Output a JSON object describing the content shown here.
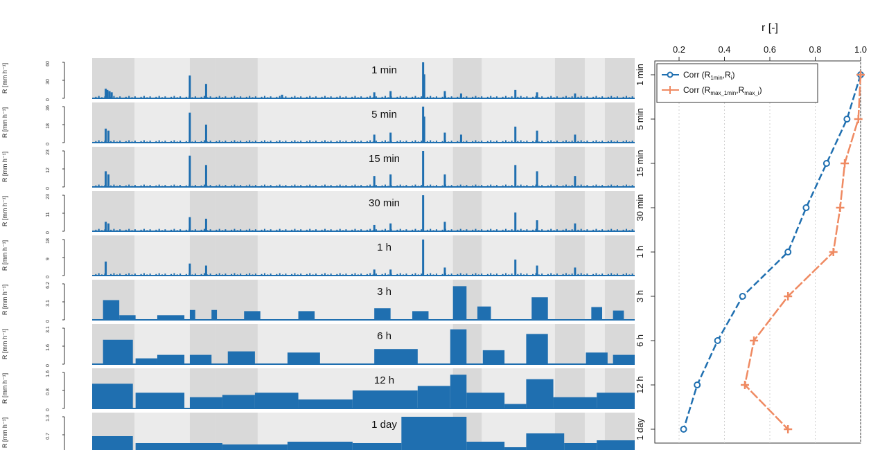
{
  "chart_data": [
    {
      "type": "area",
      "description_role": "stacked rainfall time-series panels",
      "ylabel": "R [mm h⁻¹]",
      "shading": {
        "colors": [
          "#d9d9d9",
          "#ebebeb"
        ],
        "bands_fraction": [
          [
            0.0,
            0.078
          ],
          [
            0.18,
            0.227
          ],
          [
            0.227,
            0.24
          ],
          [
            0.24,
            0.305
          ],
          [
            0.665,
            0.718
          ],
          [
            0.853,
            0.908
          ],
          [
            0.945,
            1.0
          ]
        ]
      },
      "series_color": "#1f6fb0",
      "panels": [
        {
          "title": "1 min",
          "yticks": [
            "0",
            "30",
            "60"
          ],
          "ymax": 60,
          "bars": [
            {
              "x": 0.025,
              "v": 16
            },
            {
              "x": 0.028,
              "v": 14
            },
            {
              "x": 0.032,
              "v": 12
            },
            {
              "x": 0.036,
              "v": 10
            },
            {
              "x": 0.18,
              "v": 38
            },
            {
              "x": 0.21,
              "v": 24
            },
            {
              "x": 0.52,
              "v": 10
            },
            {
              "x": 0.55,
              "v": 12
            },
            {
              "x": 0.61,
              "v": 60
            },
            {
              "x": 0.612,
              "v": 40
            },
            {
              "x": 0.65,
              "v": 12
            },
            {
              "x": 0.68,
              "v": 8
            },
            {
              "x": 0.78,
              "v": 14
            },
            {
              "x": 0.82,
              "v": 10
            },
            {
              "x": 0.89,
              "v": 8
            },
            {
              "x": 0.35,
              "v": 6
            }
          ]
        },
        {
          "title": "5 min",
          "yticks": [
            "0",
            "18",
            "36"
          ],
          "ymax": 36,
          "bars": [
            {
              "x": 0.025,
              "v": 14
            },
            {
              "x": 0.03,
              "v": 12
            },
            {
              "x": 0.18,
              "v": 30
            },
            {
              "x": 0.21,
              "v": 18
            },
            {
              "x": 0.52,
              "v": 8
            },
            {
              "x": 0.55,
              "v": 10
            },
            {
              "x": 0.61,
              "v": 36
            },
            {
              "x": 0.612,
              "v": 26
            },
            {
              "x": 0.65,
              "v": 10
            },
            {
              "x": 0.68,
              "v": 8
            },
            {
              "x": 0.78,
              "v": 16
            },
            {
              "x": 0.82,
              "v": 12
            },
            {
              "x": 0.89,
              "v": 8
            }
          ]
        },
        {
          "title": "15 min",
          "yticks": [
            "0",
            "12",
            "23"
          ],
          "ymax": 23,
          "bars": [
            {
              "x": 0.025,
              "v": 10
            },
            {
              "x": 0.03,
              "v": 8
            },
            {
              "x": 0.18,
              "v": 20
            },
            {
              "x": 0.21,
              "v": 14
            },
            {
              "x": 0.52,
              "v": 7
            },
            {
              "x": 0.55,
              "v": 8
            },
            {
              "x": 0.61,
              "v": 23
            },
            {
              "x": 0.65,
              "v": 8
            },
            {
              "x": 0.78,
              "v": 14
            },
            {
              "x": 0.82,
              "v": 10
            },
            {
              "x": 0.89,
              "v": 7
            }
          ]
        },
        {
          "title": "30 min",
          "yticks": [
            "0",
            "11",
            "23"
          ],
          "ymax": 23,
          "bars": [
            {
              "x": 0.025,
              "v": 6
            },
            {
              "x": 0.03,
              "v": 5
            },
            {
              "x": 0.18,
              "v": 9
            },
            {
              "x": 0.21,
              "v": 8
            },
            {
              "x": 0.52,
              "v": 4
            },
            {
              "x": 0.55,
              "v": 5
            },
            {
              "x": 0.61,
              "v": 23
            },
            {
              "x": 0.65,
              "v": 6
            },
            {
              "x": 0.78,
              "v": 12
            },
            {
              "x": 0.82,
              "v": 7
            },
            {
              "x": 0.89,
              "v": 5
            }
          ]
        },
        {
          "title": "1 h",
          "yticks": [
            "0",
            "9",
            "18"
          ],
          "ymax": 18,
          "bars": [
            {
              "x": 0.025,
              "v": 7
            },
            {
              "x": 0.18,
              "v": 6
            },
            {
              "x": 0.21,
              "v": 5
            },
            {
              "x": 0.52,
              "v": 3
            },
            {
              "x": 0.55,
              "v": 3
            },
            {
              "x": 0.61,
              "v": 18
            },
            {
              "x": 0.65,
              "v": 4
            },
            {
              "x": 0.78,
              "v": 8
            },
            {
              "x": 0.82,
              "v": 5
            },
            {
              "x": 0.89,
              "v": 4
            }
          ]
        },
        {
          "title": "3 h",
          "yticks": [
            "0",
            "3.1",
            "6.2"
          ],
          "ymax": 6.2,
          "blocks": [
            {
              "x0": 0.02,
              "x1": 0.05,
              "v": 3.4
            },
            {
              "x0": 0.05,
              "x1": 0.08,
              "v": 0.8
            },
            {
              "x0": 0.12,
              "x1": 0.17,
              "v": 0.8
            },
            {
              "x0": 0.18,
              "x1": 0.19,
              "v": 1.7
            },
            {
              "x0": 0.22,
              "x1": 0.23,
              "v": 1.7
            },
            {
              "x0": 0.28,
              "x1": 0.31,
              "v": 1.5
            },
            {
              "x0": 0.38,
              "x1": 0.41,
              "v": 1.5
            },
            {
              "x0": 0.52,
              "x1": 0.55,
              "v": 2.0
            },
            {
              "x0": 0.59,
              "x1": 0.62,
              "v": 1.5
            },
            {
              "x0": 0.665,
              "x1": 0.69,
              "v": 5.8
            },
            {
              "x0": 0.71,
              "x1": 0.735,
              "v": 2.3
            },
            {
              "x0": 0.81,
              "x1": 0.84,
              "v": 3.9
            },
            {
              "x0": 0.92,
              "x1": 0.94,
              "v": 2.2
            },
            {
              "x0": 0.96,
              "x1": 0.98,
              "v": 1.6
            }
          ]
        },
        {
          "title": "6 h",
          "yticks": [
            "0",
            "1.6",
            "3.1"
          ],
          "ymax": 3.1,
          "blocks": [
            {
              "x0": 0.02,
              "x1": 0.075,
              "v": 2.1
            },
            {
              "x0": 0.08,
              "x1": 0.12,
              "v": 0.5
            },
            {
              "x0": 0.12,
              "x1": 0.17,
              "v": 0.8
            },
            {
              "x0": 0.18,
              "x1": 0.22,
              "v": 0.8
            },
            {
              "x0": 0.25,
              "x1": 0.3,
              "v": 1.1
            },
            {
              "x0": 0.36,
              "x1": 0.42,
              "v": 1.0
            },
            {
              "x0": 0.52,
              "x1": 0.6,
              "v": 1.3
            },
            {
              "x0": 0.66,
              "x1": 0.69,
              "v": 3.0
            },
            {
              "x0": 0.72,
              "x1": 0.76,
              "v": 1.2
            },
            {
              "x0": 0.8,
              "x1": 0.84,
              "v": 2.6
            },
            {
              "x0": 0.91,
              "x1": 0.95,
              "v": 1.0
            },
            {
              "x0": 0.96,
              "x1": 1.0,
              "v": 0.8
            }
          ]
        },
        {
          "title": "12 h",
          "yticks": [
            "0",
            "0.8",
            "1.6"
          ],
          "ymax": 1.6,
          "blocks": [
            {
              "x0": 0.0,
              "x1": 0.075,
              "v": 1.1
            },
            {
              "x0": 0.08,
              "x1": 0.17,
              "v": 0.7
            },
            {
              "x0": 0.18,
              "x1": 0.24,
              "v": 0.5
            },
            {
              "x0": 0.24,
              "x1": 0.3,
              "v": 0.6
            },
            {
              "x0": 0.3,
              "x1": 0.38,
              "v": 0.7
            },
            {
              "x0": 0.38,
              "x1": 0.48,
              "v": 0.4
            },
            {
              "x0": 0.48,
              "x1": 0.6,
              "v": 0.8
            },
            {
              "x0": 0.6,
              "x1": 0.66,
              "v": 1.0
            },
            {
              "x0": 0.66,
              "x1": 0.69,
              "v": 1.5
            },
            {
              "x0": 0.69,
              "x1": 0.76,
              "v": 0.7
            },
            {
              "x0": 0.76,
              "x1": 0.8,
              "v": 0.2
            },
            {
              "x0": 0.8,
              "x1": 0.85,
              "v": 1.3
            },
            {
              "x0": 0.85,
              "x1": 0.93,
              "v": 0.5
            },
            {
              "x0": 0.93,
              "x1": 1.0,
              "v": 0.7
            }
          ]
        },
        {
          "title": "1 day",
          "yticks": [
            "0",
            "0.7",
            "1.3"
          ],
          "ymax": 1.3,
          "blocks": [
            {
              "x0": 0.0,
              "x1": 0.075,
              "v": 0.6
            },
            {
              "x0": 0.08,
              "x1": 0.24,
              "v": 0.35
            },
            {
              "x0": 0.24,
              "x1": 0.36,
              "v": 0.3
            },
            {
              "x0": 0.36,
              "x1": 0.48,
              "v": 0.4
            },
            {
              "x0": 0.48,
              "x1": 0.57,
              "v": 0.35
            },
            {
              "x0": 0.57,
              "x1": 0.69,
              "v": 1.3
            },
            {
              "x0": 0.69,
              "x1": 0.76,
              "v": 0.4
            },
            {
              "x0": 0.76,
              "x1": 0.8,
              "v": 0.2
            },
            {
              "x0": 0.8,
              "x1": 0.87,
              "v": 0.7
            },
            {
              "x0": 0.87,
              "x1": 0.93,
              "v": 0.35
            },
            {
              "x0": 0.93,
              "x1": 1.0,
              "v": 0.45
            }
          ]
        }
      ]
    },
    {
      "type": "line",
      "title": "r [-]",
      "xlim": [
        0.2,
        1.0
      ],
      "xticks": [
        "0.2",
        "0.4",
        "0.6",
        "0.8",
        "1.0"
      ],
      "categories": [
        "1 min",
        "5 min",
        "15 min",
        "30 min",
        "1 h",
        "3 h",
        "6 h",
        "12 h",
        "1 day"
      ],
      "grid": true,
      "legend": "top-right",
      "series": [
        {
          "name": "Corr (R1min,Ri)",
          "legend_main": "Corr (R",
          "legend_sub1": "1min",
          "legend_mid": ",R",
          "legend_sub2": "i",
          "legend_end": ")",
          "marker": "circle",
          "color": "#1f6fb0",
          "values": [
            1.0,
            0.94,
            0.85,
            0.76,
            0.68,
            0.48,
            0.37,
            0.28,
            0.22
          ]
        },
        {
          "name": "Corr (Rmax_1min,Rmax_i)",
          "legend_main": "Corr (R",
          "legend_sub1": "max_1min",
          "legend_mid": ",R",
          "legend_sub2": "max_i",
          "legend_end": ")",
          "marker": "plus",
          "color": "#ef8a62",
          "values": [
            1.0,
            0.99,
            0.93,
            0.91,
            0.88,
            0.68,
            0.53,
            0.49,
            0.68
          ]
        }
      ]
    }
  ]
}
